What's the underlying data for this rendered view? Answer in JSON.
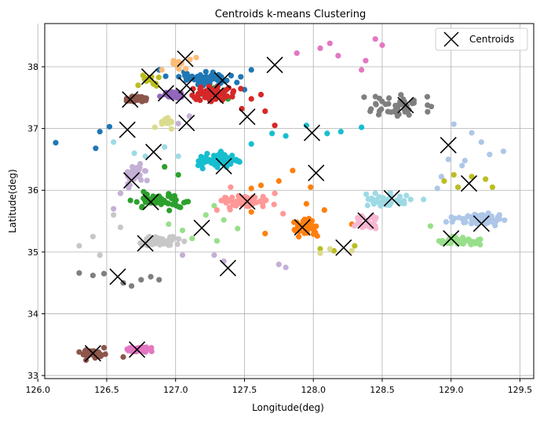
{
  "chart_data": {
    "type": "scatter",
    "title": "Centroids k-means Clustering",
    "xlabel": "Longitude(deg)",
    "ylabel": "Latitude(deg)",
    "xlim": [
      126.05,
      129.6
    ],
    "ylim": [
      32.95,
      38.7
    ],
    "xticks": [
      126.0,
      126.5,
      127.0,
      127.5,
      128.0,
      128.5,
      129.0,
      129.5
    ],
    "yticks": [
      33,
      34,
      35,
      36,
      37,
      38
    ],
    "xtick_labels": [
      "126.0",
      "126.5",
      "127.0",
      "127.5",
      "128.0",
      "128.5",
      "129.0",
      "129.5"
    ],
    "ytick_labels": [
      "33",
      "34",
      "35",
      "36",
      "37",
      "38"
    ],
    "grid": true,
    "legend": {
      "position": "top-right",
      "entries": [
        "Centroids"
      ]
    },
    "centroid_marker": "x",
    "centroid_color": "#000000",
    "centroids": [
      [
        127.07,
        38.13
      ],
      [
        127.72,
        38.03
      ],
      [
        126.81,
        37.84
      ],
      [
        127.34,
        37.78
      ],
      [
        127.08,
        37.7
      ],
      [
        127.06,
        37.53
      ],
      [
        126.67,
        37.47
      ],
      [
        126.93,
        37.57
      ],
      [
        127.29,
        37.53
      ],
      [
        128.67,
        37.38
      ],
      [
        127.52,
        37.19
      ],
      [
        127.08,
        37.09
      ],
      [
        126.65,
        36.98
      ],
      [
        127.99,
        36.93
      ],
      [
        128.98,
        36.73
      ],
      [
        126.84,
        36.62
      ],
      [
        127.35,
        36.39
      ],
      [
        128.02,
        36.28
      ],
      [
        126.68,
        36.16
      ],
      [
        129.13,
        36.11
      ],
      [
        128.57,
        35.87
      ],
      [
        126.82,
        35.81
      ],
      [
        127.52,
        35.82
      ],
      [
        128.38,
        35.51
      ],
      [
        129.22,
        35.46
      ],
      [
        127.19,
        35.39
      ],
      [
        127.92,
        35.4
      ],
      [
        129.0,
        35.22
      ],
      [
        126.78,
        35.14
      ],
      [
        128.22,
        35.07
      ],
      [
        127.38,
        34.74
      ],
      [
        126.58,
        34.6
      ],
      [
        126.4,
        33.36
      ],
      [
        126.72,
        33.42
      ]
    ],
    "clusters": [
      {
        "name": "",
        "color": "#1f77b4",
        "center": [
          127.22,
          37.8
        ],
        "spread": [
          0.22,
          0.1
        ],
        "count": 55,
        "extra": [
          [
            126.13,
            36.77
          ],
          [
            126.42,
            36.68
          ],
          [
            126.52,
            37.03
          ],
          [
            126.45,
            36.95
          ],
          [
            127.55,
            37.95
          ],
          [
            127.5,
            37.63
          ],
          [
            127.22,
            37.92
          ],
          [
            127.08,
            37.88
          ],
          [
            126.88,
            37.95
          ]
        ]
      },
      {
        "name": "",
        "color": "#aec7e8",
        "center": [
          129.2,
          35.53
        ],
        "spread": [
          0.18,
          0.08
        ],
        "count": 60,
        "extra": [
          [
            129.38,
            36.63
          ],
          [
            129.15,
            36.93
          ],
          [
            129.02,
            37.07
          ],
          [
            129.22,
            36.78
          ],
          [
            128.98,
            36.5
          ],
          [
            129.08,
            36.4
          ],
          [
            128.93,
            36.22
          ],
          [
            129.1,
            36.48
          ],
          [
            128.9,
            36.03
          ],
          [
            129.28,
            36.58
          ]
        ]
      },
      {
        "name": "",
        "color": "#ff7f0e",
        "center": [
          127.95,
          35.4
        ],
        "spread": [
          0.1,
          0.13
        ],
        "count": 45,
        "extra": [
          [
            127.62,
            36.08
          ],
          [
            127.75,
            36.15
          ],
          [
            127.85,
            36.32
          ],
          [
            127.98,
            36.05
          ],
          [
            128.08,
            35.68
          ],
          [
            128.28,
            35.45
          ],
          [
            127.55,
            35.65
          ],
          [
            127.65,
            35.3
          ],
          [
            127.95,
            35.78
          ],
          [
            127.55,
            36.03
          ]
        ]
      },
      {
        "name": "",
        "color": "#ffbb78",
        "center": [
          127.05,
          38.02
        ],
        "spread": [
          0.1,
          0.08
        ],
        "count": 9,
        "extra": [
          [
            127.15,
            38.15
          ],
          [
            126.9,
            37.95
          ]
        ]
      },
      {
        "name": "",
        "color": "#2ca02c",
        "center": [
          126.9,
          35.82
        ],
        "spread": [
          0.18,
          0.12
        ],
        "count": 50,
        "extra": [
          [
            127.35,
            37.62
          ],
          [
            127.38,
            37.48
          ],
          [
            127.2,
            37.55
          ],
          [
            127.28,
            37.66
          ],
          [
            127.02,
            36.25
          ],
          [
            126.92,
            36.38
          ]
        ]
      },
      {
        "name": "",
        "color": "#98df8a",
        "center": [
          129.05,
          35.18
        ],
        "spread": [
          0.15,
          0.06
        ],
        "count": 50,
        "extra": [
          [
            127.05,
            35.35
          ],
          [
            127.22,
            35.6
          ],
          [
            127.3,
            35.18
          ],
          [
            127.45,
            35.38
          ],
          [
            127.35,
            35.52
          ],
          [
            126.95,
            35.45
          ],
          [
            127.12,
            35.22
          ],
          [
            127.28,
            35.75
          ],
          [
            128.85,
            35.42
          ]
        ]
      },
      {
        "name": "",
        "color": "#d62728",
        "center": [
          127.25,
          37.55
        ],
        "spread": [
          0.18,
          0.12
        ],
        "count": 55,
        "extra": [
          [
            127.65,
            37.28
          ],
          [
            127.72,
            37.05
          ],
          [
            127.48,
            37.32
          ],
          [
            127.55,
            37.48
          ],
          [
            127.62,
            37.55
          ]
        ]
      },
      {
        "name": "",
        "color": "#ff9896",
        "center": [
          127.5,
          35.8
        ],
        "spread": [
          0.17,
          0.12
        ],
        "count": 55,
        "extra": [
          [
            127.78,
            35.62
          ],
          [
            127.72,
            35.95
          ],
          [
            127.4,
            36.05
          ],
          [
            127.3,
            35.68
          ]
        ]
      },
      {
        "name": "",
        "color": "#9467bd",
        "center": [
          126.98,
          37.55
        ],
        "spread": [
          0.08,
          0.05
        ],
        "count": 45,
        "extra": []
      },
      {
        "name": "",
        "color": "#c5b0d5",
        "center": [
          126.7,
          36.25
        ],
        "spread": [
          0.08,
          0.18
        ],
        "count": 30,
        "extra": [
          [
            126.6,
            35.95
          ],
          [
            126.55,
            35.7
          ],
          [
            127.05,
            34.95
          ],
          [
            127.35,
            34.85
          ],
          [
            127.28,
            34.95
          ],
          [
            127.8,
            34.75
          ],
          [
            127.75,
            34.8
          ],
          [
            127.02,
            37.08
          ],
          [
            127.1,
            37.2
          ]
        ]
      },
      {
        "name": "",
        "color": "#8c564b",
        "center": [
          126.72,
          37.48
        ],
        "spread": [
          0.06,
          0.05
        ],
        "count": 50,
        "extra": [
          [
            126.35,
            33.25
          ],
          [
            126.48,
            33.45
          ],
          [
            126.3,
            33.38
          ],
          [
            126.62,
            33.3
          ]
        ]
      },
      {
        "name": "",
        "color": "#8c564b",
        "center": [
          126.4,
          33.35
        ],
        "spread": [
          0.08,
          0.07
        ],
        "count": 30,
        "extra": []
      },
      {
        "name": "",
        "color": "#e377c2",
        "center": [
          126.75,
          33.42
        ],
        "spread": [
          0.1,
          0.05
        ],
        "count": 50,
        "extra": [
          [
            128.05,
            38.3
          ],
          [
            127.88,
            38.22
          ],
          [
            128.12,
            38.38
          ],
          [
            128.18,
            38.18
          ],
          [
            128.38,
            38.1
          ],
          [
            128.35,
            37.95
          ],
          [
            128.45,
            38.45
          ],
          [
            128.5,
            38.35
          ]
        ]
      },
      {
        "name": "",
        "color": "#7f7f7f",
        "center": [
          128.62,
          37.35
        ],
        "spread": [
          0.25,
          0.2
        ],
        "count": 45,
        "extra": [
          [
            126.4,
            34.62
          ],
          [
            126.3,
            34.66
          ],
          [
            126.62,
            34.5
          ],
          [
            126.75,
            34.55
          ],
          [
            126.68,
            34.45
          ],
          [
            126.82,
            34.6
          ],
          [
            126.88,
            34.55
          ],
          [
            126.48,
            34.65
          ]
        ]
      },
      {
        "name": "",
        "color": "#c7c7c7",
        "center": [
          126.88,
          35.18
        ],
        "spread": [
          0.14,
          0.08
        ],
        "count": 65,
        "extra": [
          [
            126.3,
            35.1
          ],
          [
            126.45,
            34.95
          ],
          [
            126.6,
            35.4
          ],
          [
            126.55,
            35.6
          ],
          [
            126.4,
            35.25
          ]
        ]
      },
      {
        "name": "",
        "color": "#bcbd22",
        "center": [
          126.8,
          37.8
        ],
        "spread": [
          0.08,
          0.1
        ],
        "count": 15,
        "extra": [
          [
            129.15,
            36.22
          ],
          [
            129.05,
            36.05
          ],
          [
            129.25,
            36.18
          ],
          [
            129.02,
            36.25
          ],
          [
            128.95,
            36.15
          ],
          [
            129.3,
            36.05
          ],
          [
            128.05,
            35.05
          ],
          [
            128.15,
            35.02
          ],
          [
            128.3,
            35.1
          ]
        ]
      },
      {
        "name": "",
        "color": "#dbdb8d",
        "center": [
          126.92,
          37.1
        ],
        "spread": [
          0.08,
          0.08
        ],
        "count": 12,
        "extra": [
          [
            128.12,
            35.05
          ],
          [
            128.28,
            35.02
          ],
          [
            128.05,
            34.98
          ]
        ]
      },
      {
        "name": "",
        "color": "#17becf",
        "center": [
          127.32,
          36.48
        ],
        "spread": [
          0.14,
          0.1
        ],
        "count": 95,
        "extra": [
          [
            128.1,
            36.92
          ],
          [
            128.35,
            37.02
          ],
          [
            127.8,
            36.88
          ],
          [
            127.95,
            37.05
          ],
          [
            128.2,
            36.95
          ],
          [
            127.55,
            36.75
          ],
          [
            127.7,
            36.92
          ]
        ]
      },
      {
        "name": "",
        "color": "#9edae5",
        "center": [
          128.55,
          35.85
        ],
        "spread": [
          0.15,
          0.1
        ],
        "count": 40,
        "extra": [
          [
            126.78,
            36.55
          ],
          [
            126.55,
            36.78
          ],
          [
            126.92,
            36.7
          ],
          [
            127.02,
            36.55
          ],
          [
            126.7,
            36.6
          ],
          [
            128.8,
            35.85
          ]
        ]
      },
      {
        "name": "",
        "color": "#f7b6d2",
        "center": [
          128.38,
          35.5
        ],
        "spread": [
          0.1,
          0.12
        ],
        "count": 25,
        "extra": []
      }
    ]
  }
}
